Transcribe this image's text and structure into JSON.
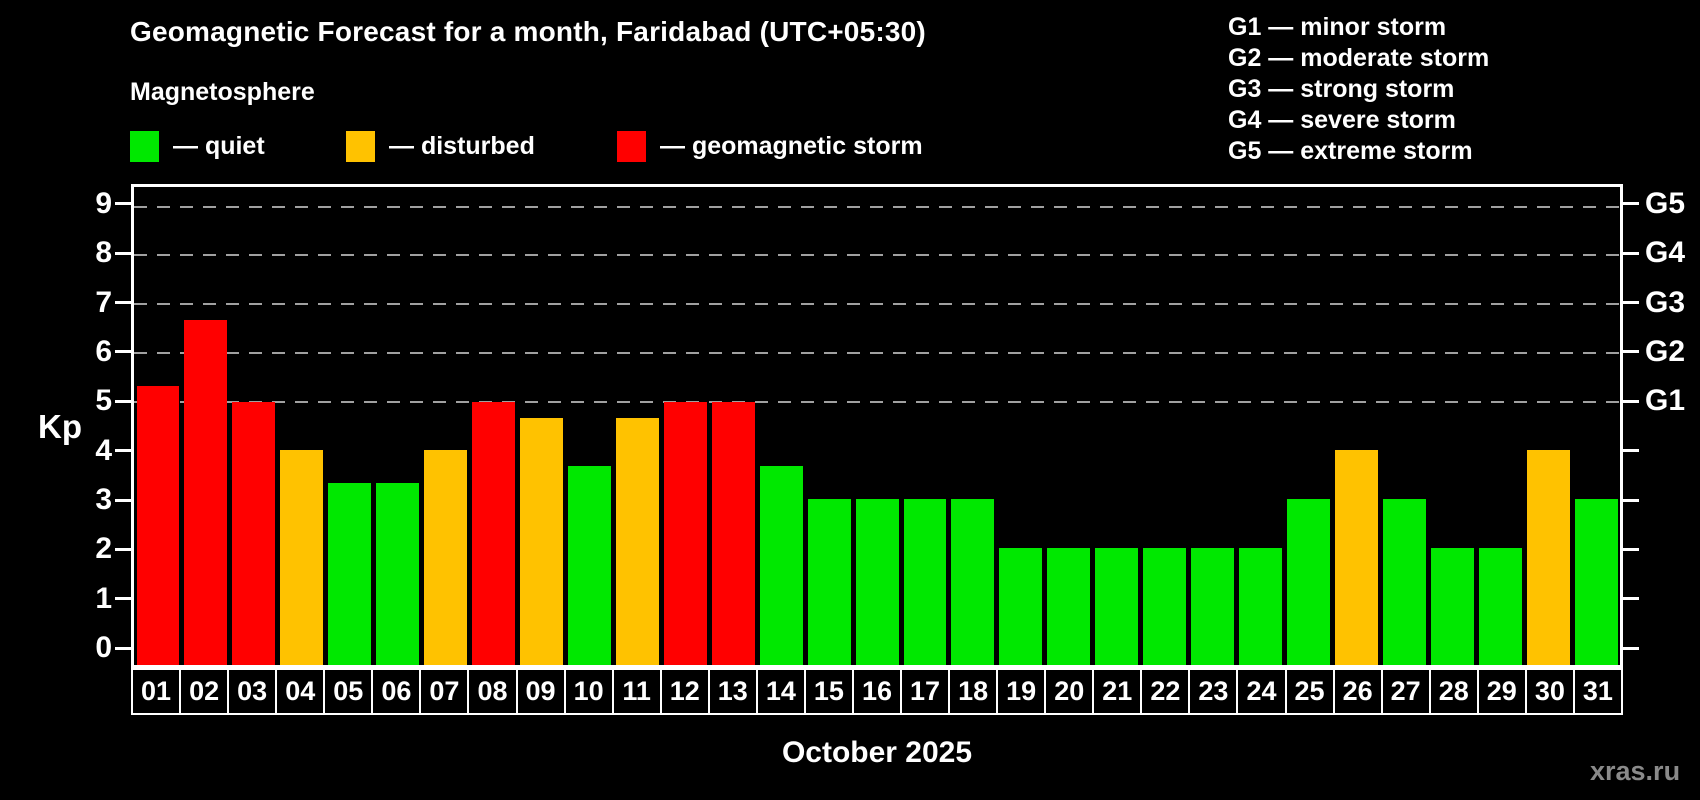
{
  "header": {
    "title": "Geomagnetic Forecast for a month, Faridabad (UTC+05:30)",
    "subtitle": "Magnetosphere",
    "legend": [
      {
        "key": "quiet",
        "label": "— quiet"
      },
      {
        "key": "disturbed",
        "label": "— disturbed"
      },
      {
        "key": "storm",
        "label": "— geomagnetic storm"
      }
    ],
    "g_legend": [
      "G1 — minor storm",
      "G2 — moderate storm",
      "G3 — strong storm",
      "G4 — severe storm",
      "G5 — extreme storm"
    ]
  },
  "colors": {
    "quiet": "#00e800",
    "disturbed": "#ffc200",
    "storm": "#ff0000",
    "grid": "#a0a0a0",
    "axis": "#ffffff",
    "background": "#000000",
    "watermark": "#8a8a8a"
  },
  "chart_data": {
    "type": "bar",
    "title": "Geomagnetic Forecast for a month, Faridabad (UTC+05:30)",
    "ylabel": "Kp",
    "xlabel": "October 2025",
    "ylim": [
      -0.4,
      9.4
    ],
    "yticks": [
      0,
      1,
      2,
      3,
      4,
      5,
      6,
      7,
      8,
      9
    ],
    "gridlines": [
      5,
      6,
      7,
      8,
      9
    ],
    "grid_style": "dashed",
    "legend_position": "top",
    "right_axis": [
      {
        "kp": 5,
        "label": "G1"
      },
      {
        "kp": 6,
        "label": "G2"
      },
      {
        "kp": 7,
        "label": "G3"
      },
      {
        "kp": 8,
        "label": "G4"
      },
      {
        "kp": 9,
        "label": "G5"
      }
    ],
    "categories": [
      "01",
      "02",
      "03",
      "04",
      "05",
      "06",
      "07",
      "08",
      "09",
      "10",
      "11",
      "12",
      "13",
      "14",
      "15",
      "16",
      "17",
      "18",
      "19",
      "20",
      "21",
      "22",
      "23",
      "24",
      "25",
      "26",
      "27",
      "28",
      "29",
      "30",
      "31"
    ],
    "values": [
      5.33,
      6.67,
      5,
      4,
      3.33,
      3.33,
      4,
      5,
      4.67,
      3.67,
      4.67,
      5,
      5,
      3.67,
      3,
      3,
      3,
      3,
      2,
      2,
      2,
      2,
      2,
      2,
      3,
      4,
      3,
      2,
      2,
      4,
      3
    ],
    "statuses": [
      "storm",
      "storm",
      "storm",
      "disturbed",
      "quiet",
      "quiet",
      "disturbed",
      "storm",
      "disturbed",
      "quiet",
      "disturbed",
      "storm",
      "storm",
      "quiet",
      "quiet",
      "quiet",
      "quiet",
      "quiet",
      "quiet",
      "quiet",
      "quiet",
      "quiet",
      "quiet",
      "quiet",
      "quiet",
      "disturbed",
      "quiet",
      "quiet",
      "quiet",
      "disturbed",
      "quiet"
    ]
  },
  "footer": {
    "xlabel": "October 2025",
    "watermark": "xras.ru"
  }
}
